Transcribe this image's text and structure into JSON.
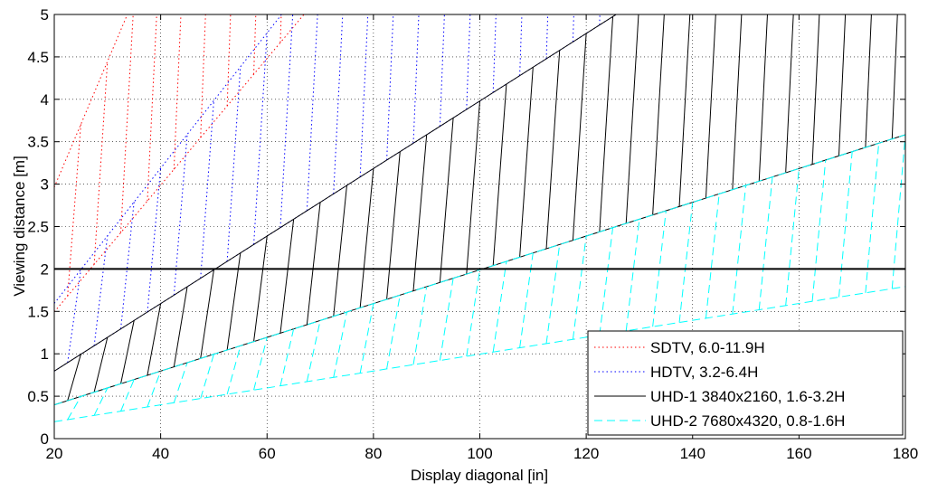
{
  "chart_data": {
    "type": "line",
    "title": "",
    "xlabel": "Display diagonal [in]",
    "ylabel": "Viewing distance [m]",
    "xlim": [
      20,
      180
    ],
    "ylim": [
      0,
      5
    ],
    "xticks": [
      "20",
      "40",
      "60",
      "80",
      "100",
      "120",
      "140",
      "160",
      "180"
    ],
    "yticks": [
      "0",
      "0.5",
      "1",
      "1.5",
      "2",
      "2.5",
      "3",
      "3.5",
      "4",
      "4.5",
      "5"
    ],
    "grid": true,
    "legend_position": "bottom-right",
    "reference_line": {
      "y": 2
    },
    "hatch_step_in": 5,
    "series": [
      {
        "name": "SDTV, 6.0-11.9H",
        "color": "#ff0000",
        "style": "dotted",
        "meters_per_inch": [
          0.0747,
          0.1482
        ]
      },
      {
        "name": "HDTV, 3.2-6.4H",
        "color": "#0000ff",
        "style": "dotted",
        "meters_per_inch": [
          0.0398,
          0.0797
        ]
      },
      {
        "name": "UHD-1 3840x2160, 1.6-3.2H",
        "color": "#000000",
        "style": "solid",
        "meters_per_inch": [
          0.0199,
          0.0398
        ]
      },
      {
        "name": "UHD-2 7680x4320, 0.8-1.6H",
        "color": "#00ffff",
        "style": "dashed",
        "meters_per_inch": [
          0.00996,
          0.0199
        ]
      }
    ]
  }
}
